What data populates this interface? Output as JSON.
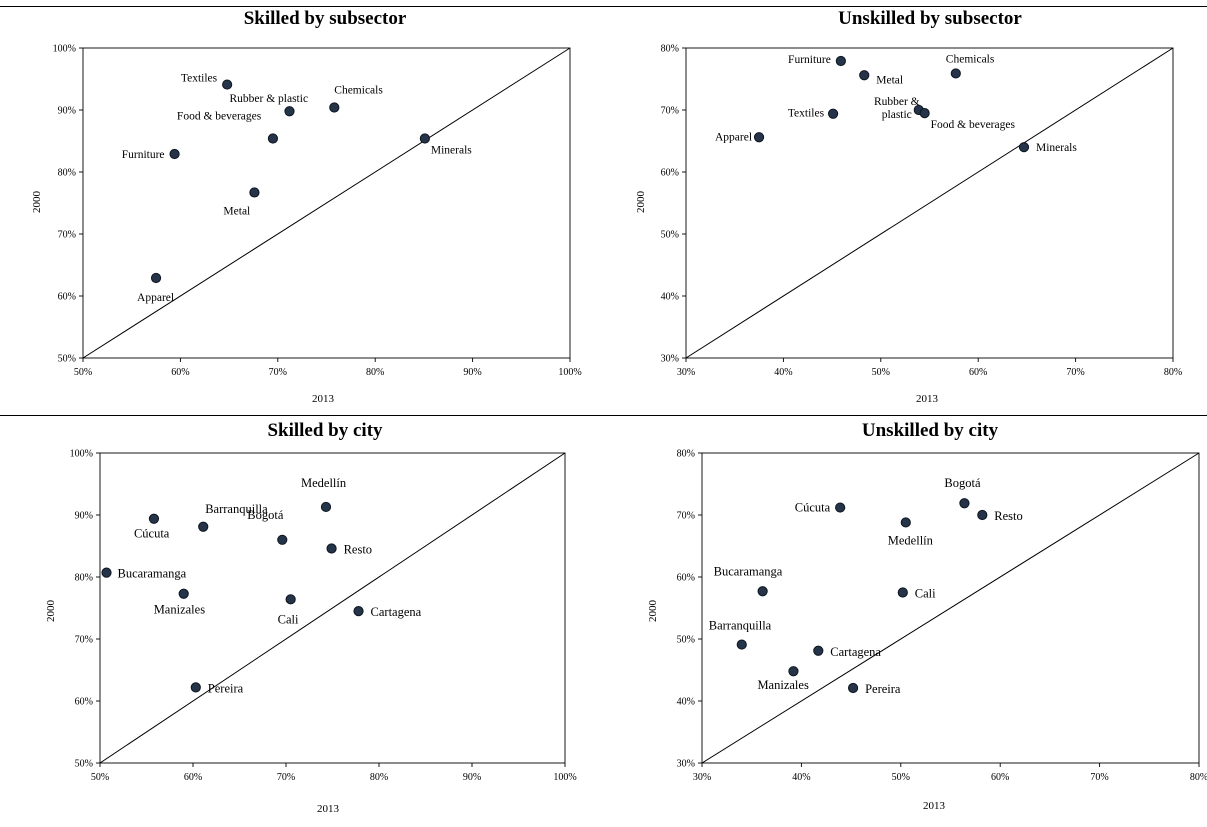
{
  "chart_data": [
    {
      "type": "scatter",
      "title": "Skilled by subsector",
      "xlabel": "2013",
      "ylabel": "2000",
      "xlim": [
        0.5,
        1.0
      ],
      "ylim": [
        0.5,
        1.0
      ],
      "xticks": [
        "50%",
        "60%",
        "70%",
        "80%",
        "90%",
        "100%"
      ],
      "yticks": [
        "50%",
        "60%",
        "70%",
        "80%",
        "90%",
        "100%"
      ],
      "diagonal": true,
      "grid": false,
      "points": [
        {
          "label": "Textiles",
          "x": 0.648,
          "y": 0.941
        },
        {
          "label": "Rubber & plastic",
          "x": 0.712,
          "y": 0.898
        },
        {
          "label": "Chemicals",
          "x": 0.758,
          "y": 0.904
        },
        {
          "label": "Food & beverages",
          "x": 0.695,
          "y": 0.854
        },
        {
          "label": "Furniture",
          "x": 0.594,
          "y": 0.829
        },
        {
          "label": "Minerals",
          "x": 0.851,
          "y": 0.854
        },
        {
          "label": "Metal",
          "x": 0.676,
          "y": 0.767
        },
        {
          "label": "Apparel",
          "x": 0.575,
          "y": 0.629
        }
      ]
    },
    {
      "type": "scatter",
      "title": "Unskilled by subsector",
      "xlabel": "2013",
      "ylabel": "2000",
      "xlim": [
        0.3,
        0.8
      ],
      "ylim": [
        0.3,
        0.8
      ],
      "xticks": [
        "30%",
        "40%",
        "50%",
        "60%",
        "70%",
        "80%"
      ],
      "yticks": [
        "30%",
        "40%",
        "50%",
        "60%",
        "70%",
        "80%"
      ],
      "diagonal": true,
      "grid": false,
      "points": [
        {
          "label": "Furniture",
          "x": 0.459,
          "y": 0.779
        },
        {
          "label": "Metal",
          "x": 0.483,
          "y": 0.756
        },
        {
          "label": "Chemicals",
          "x": 0.577,
          "y": 0.759
        },
        {
          "label": "Textiles",
          "x": 0.451,
          "y": 0.694
        },
        {
          "label": "Rubber & plastic",
          "x": 0.539,
          "y": 0.7
        },
        {
          "label": "Food & beverages",
          "x": 0.545,
          "y": 0.695
        },
        {
          "label": "Apparel",
          "x": 0.375,
          "y": 0.656
        },
        {
          "label": "Minerals",
          "x": 0.647,
          "y": 0.64
        }
      ]
    },
    {
      "type": "scatter",
      "title": "Skilled by city",
      "xlabel": "2013",
      "ylabel": "2000",
      "xlim": [
        0.5,
        1.0
      ],
      "ylim": [
        0.5,
        1.0
      ],
      "xticks": [
        "50%",
        "60%",
        "70%",
        "80%",
        "90%",
        "100%"
      ],
      "yticks": [
        "50%",
        "60%",
        "70%",
        "80%",
        "90%",
        "100%"
      ],
      "diagonal": true,
      "grid": false,
      "points": [
        {
          "label": "Medellín",
          "x": 0.743,
          "y": 0.913
        },
        {
          "label": "Barranquilla",
          "x": 0.611,
          "y": 0.881
        },
        {
          "label": "Cúcuta",
          "x": 0.558,
          "y": 0.894
        },
        {
          "label": "Bogotá",
          "x": 0.696,
          "y": 0.86
        },
        {
          "label": "Resto",
          "x": 0.749,
          "y": 0.846
        },
        {
          "label": "Bucaramanga",
          "x": 0.507,
          "y": 0.807
        },
        {
          "label": "Manizales",
          "x": 0.59,
          "y": 0.773
        },
        {
          "label": "Cali",
          "x": 0.705,
          "y": 0.764
        },
        {
          "label": "Cartagena",
          "x": 0.778,
          "y": 0.745
        },
        {
          "label": "Pereira",
          "x": 0.603,
          "y": 0.622
        }
      ]
    },
    {
      "type": "scatter",
      "title": "Unskilled by city",
      "xlabel": "2013",
      "ylabel": "2000",
      "xlim": [
        0.3,
        0.8
      ],
      "ylim": [
        0.3,
        0.8
      ],
      "xticks": [
        "30%",
        "40%",
        "50%",
        "60%",
        "70%",
        "80%"
      ],
      "yticks": [
        "30%",
        "40%",
        "50%",
        "60%",
        "70%",
        "80%"
      ],
      "diagonal": true,
      "grid": false,
      "points": [
        {
          "label": "Bogotá",
          "x": 0.564,
          "y": 0.719
        },
        {
          "label": "Cúcuta",
          "x": 0.439,
          "y": 0.712
        },
        {
          "label": "Resto",
          "x": 0.582,
          "y": 0.7
        },
        {
          "label": "Medellín",
          "x": 0.505,
          "y": 0.688
        },
        {
          "label": "Bucaramanga",
          "x": 0.361,
          "y": 0.577
        },
        {
          "label": "Cali",
          "x": 0.502,
          "y": 0.575
        },
        {
          "label": "Barranquilla",
          "x": 0.34,
          "y": 0.491
        },
        {
          "label": "Cartagena",
          "x": 0.417,
          "y": 0.481
        },
        {
          "label": "Manizales",
          "x": 0.392,
          "y": 0.448
        },
        {
          "label": "Pereira",
          "x": 0.452,
          "y": 0.421
        }
      ]
    }
  ]
}
